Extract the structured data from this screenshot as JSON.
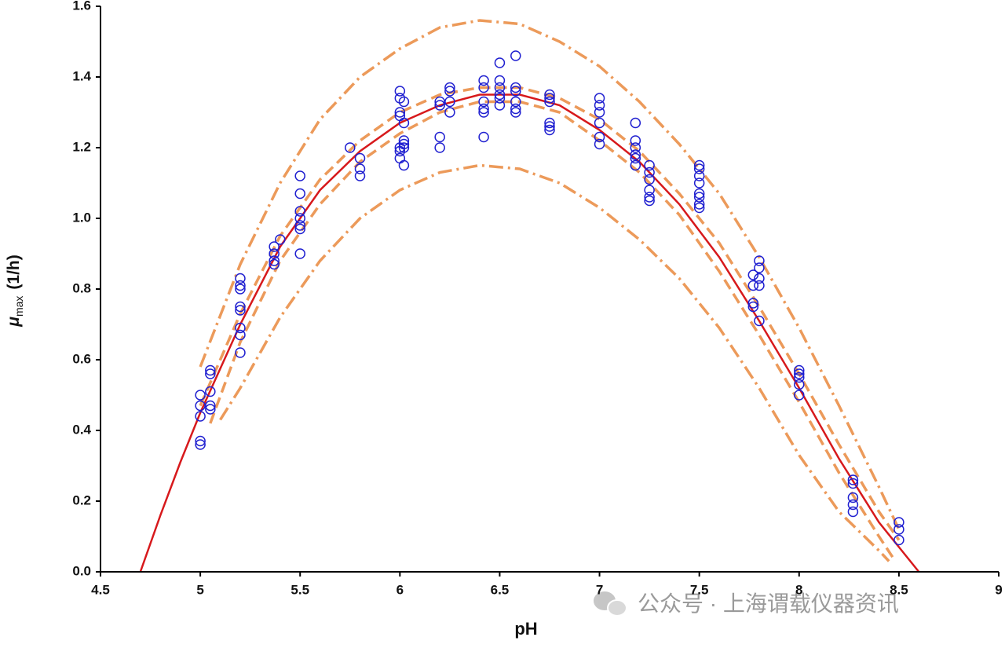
{
  "chart_data": {
    "type": "scatter",
    "x_label": "pH",
    "y_label": {
      "symbol": "μ",
      "subscript": "max",
      "unit": "(1/h)"
    },
    "watermark": "公众号 · 上海谓载仪器资讯",
    "xlim": [
      4.5,
      9
    ],
    "xticks": [
      4.5,
      5,
      5.5,
      6,
      6.5,
      7,
      7.5,
      8,
      8.5,
      9
    ],
    "ylim": [
      0,
      1.6
    ],
    "yticks": [
      {
        "value": 0,
        "label": "0.0"
      },
      0.2,
      0.4,
      0.6,
      0.8,
      {
        "value": 1,
        "label": "1.0"
      },
      1.2,
      1.4,
      1.6
    ],
    "series": [
      {
        "type": "line",
        "dash": "dashdot",
        "color": "#ec9a5a",
        "x": [
          5.0,
          5.2,
          5.4,
          5.6,
          5.8,
          6.0,
          6.2,
          6.4,
          6.6,
          6.8,
          7.0,
          7.2,
          7.4,
          7.6,
          7.8,
          8.0,
          8.2,
          8.4,
          8.5
        ],
        "values": [
          0.58,
          0.87,
          1.1,
          1.28,
          1.4,
          1.48,
          1.54,
          1.56,
          1.55,
          1.5,
          1.43,
          1.33,
          1.21,
          1.07,
          0.89,
          0.69,
          0.47,
          0.24,
          0.12
        ]
      },
      {
        "type": "line",
        "dash": "dashdot",
        "color": "#ec9a5a",
        "x": [
          5.1,
          5.2,
          5.4,
          5.6,
          5.8,
          6.0,
          6.2,
          6.4,
          6.6,
          6.8,
          7.0,
          7.2,
          7.4,
          7.6,
          7.8,
          8.0,
          8.2,
          8.4,
          8.45
        ],
        "values": [
          0.43,
          0.52,
          0.72,
          0.88,
          1.0,
          1.08,
          1.13,
          1.15,
          1.14,
          1.1,
          1.03,
          0.94,
          0.83,
          0.69,
          0.52,
          0.33,
          0.17,
          0.06,
          0.03
        ]
      },
      {
        "type": "line",
        "dash": "dashed",
        "color": "#ec9a5a",
        "x": [
          5.0,
          5.2,
          5.4,
          5.6,
          5.8,
          6.0,
          6.2,
          6.4,
          6.6,
          6.8,
          7.0,
          7.2,
          7.4,
          7.6,
          7.8,
          8.0,
          8.2,
          8.4,
          8.5
        ],
        "values": [
          0.47,
          0.73,
          0.95,
          1.11,
          1.22,
          1.3,
          1.35,
          1.37,
          1.37,
          1.34,
          1.28,
          1.19,
          1.07,
          0.93,
          0.75,
          0.56,
          0.36,
          0.17,
          0.09
        ]
      },
      {
        "type": "line",
        "dash": "dashed",
        "color": "#ec9a5a",
        "x": [
          5.05,
          5.2,
          5.4,
          5.6,
          5.8,
          6.0,
          6.2,
          6.4,
          6.6,
          6.8,
          7.0,
          7.2,
          7.4,
          7.6,
          7.8,
          8.0,
          8.2,
          8.4,
          8.47
        ],
        "values": [
          0.42,
          0.65,
          0.88,
          1.04,
          1.16,
          1.24,
          1.3,
          1.33,
          1.33,
          1.3,
          1.22,
          1.13,
          1.01,
          0.85,
          0.67,
          0.48,
          0.28,
          0.1,
          0.04
        ]
      },
      {
        "type": "line",
        "dash": "solid",
        "color": "#d7191c",
        "x": [
          4.7,
          4.8,
          4.9,
          5.0,
          5.2,
          5.4,
          5.6,
          5.8,
          6.0,
          6.2,
          6.4,
          6.6,
          6.8,
          7.0,
          7.2,
          7.4,
          7.6,
          7.8,
          8.0,
          8.2,
          8.4,
          8.5,
          8.6
        ],
        "values": [
          0,
          0.16,
          0.31,
          0.45,
          0.7,
          0.92,
          1.08,
          1.19,
          1.27,
          1.32,
          1.35,
          1.35,
          1.32,
          1.25,
          1.16,
          1.04,
          0.89,
          0.71,
          0.52,
          0.32,
          0.14,
          0.07,
          0
        ]
      },
      {
        "type": "scatter",
        "color": "#1f1fd0",
        "x": [
          5.0,
          5.0,
          5.0,
          5.0,
          5.0,
          5.05,
          5.05,
          5.05,
          5.05,
          5.05,
          5.2,
          5.2,
          5.2,
          5.2,
          5.2,
          5.2,
          5.2,
          5.2,
          5.37,
          5.37,
          5.37,
          5.37,
          5.4,
          5.5,
          5.5,
          5.5,
          5.5,
          5.5,
          5.5,
          5.5,
          5.75,
          5.8,
          5.8,
          5.8,
          6.0,
          6.0,
          6.0,
          6.0,
          6.0,
          6.0,
          6.0,
          6.02,
          6.02,
          6.02,
          6.02,
          6.02,
          6.02,
          6.2,
          6.2,
          6.2,
          6.2,
          6.25,
          6.25,
          6.25,
          6.25,
          6.42,
          6.42,
          6.42,
          6.42,
          6.42,
          6.42,
          6.5,
          6.5,
          6.5,
          6.5,
          6.5,
          6.5,
          6.58,
          6.58,
          6.58,
          6.58,
          6.58,
          6.58,
          6.75,
          6.75,
          6.75,
          6.75,
          6.75,
          6.75,
          7.0,
          7.0,
          7.0,
          7.0,
          7.0,
          7.0,
          7.18,
          7.18,
          7.18,
          7.18,
          7.18,
          7.18,
          7.25,
          7.25,
          7.25,
          7.25,
          7.25,
          7.25,
          7.5,
          7.5,
          7.5,
          7.5,
          7.5,
          7.5,
          7.5,
          7.5,
          7.77,
          7.77,
          7.77,
          7.77,
          7.8,
          7.8,
          7.8,
          7.8,
          7.8,
          8.0,
          8.0,
          8.0,
          8.0,
          8.0,
          8.27,
          8.27,
          8.27,
          8.27,
          8.27,
          8.5,
          8.5,
          8.5
        ],
        "values": [
          0.5,
          0.47,
          0.44,
          0.36,
          0.37,
          0.57,
          0.56,
          0.51,
          0.47,
          0.46,
          0.83,
          0.81,
          0.8,
          0.75,
          0.74,
          0.69,
          0.67,
          0.62,
          0.92,
          0.9,
          0.88,
          0.87,
          0.94,
          1.12,
          1.07,
          1.02,
          1.0,
          0.98,
          0.97,
          0.9,
          1.2,
          1.17,
          1.14,
          1.12,
          1.36,
          1.34,
          1.3,
          1.29,
          1.2,
          1.19,
          1.17,
          1.33,
          1.27,
          1.22,
          1.21,
          1.2,
          1.15,
          1.33,
          1.32,
          1.23,
          1.2,
          1.37,
          1.36,
          1.33,
          1.3,
          1.39,
          1.37,
          1.33,
          1.31,
          1.3,
          1.23,
          1.44,
          1.39,
          1.37,
          1.35,
          1.34,
          1.32,
          1.46,
          1.37,
          1.36,
          1.33,
          1.31,
          1.3,
          1.35,
          1.34,
          1.33,
          1.27,
          1.26,
          1.25,
          1.34,
          1.32,
          1.3,
          1.27,
          1.23,
          1.21,
          1.27,
          1.22,
          1.2,
          1.18,
          1.17,
          1.15,
          1.15,
          1.13,
          1.11,
          1.08,
          1.06,
          1.05,
          1.15,
          1.14,
          1.12,
          1.1,
          1.07,
          1.06,
          1.04,
          1.03,
          0.84,
          0.81,
          0.76,
          0.75,
          0.88,
          0.86,
          0.83,
          0.81,
          0.71,
          0.57,
          0.56,
          0.55,
          0.53,
          0.5,
          0.26,
          0.25,
          0.21,
          0.19,
          0.17,
          0.14,
          0.12,
          0.09
        ]
      }
    ]
  }
}
